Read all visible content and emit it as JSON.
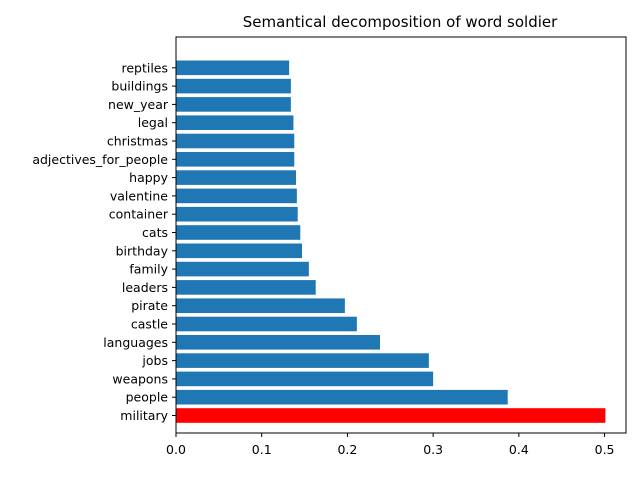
{
  "chart_data": {
    "type": "bar",
    "orientation": "horizontal",
    "title": "Semantical decomposition of word soldier",
    "xlabel": "",
    "ylabel": "",
    "xlim": [
      0,
      0.525
    ],
    "xticks": [
      "0.0",
      "0.1",
      "0.2",
      "0.3",
      "0.4",
      "0.5"
    ],
    "grid": false,
    "highlight_color": "#ff0000",
    "bar_color": "#1f77b4",
    "categories": [
      "military",
      "people",
      "weapons",
      "jobs",
      "languages",
      "castle",
      "pirate",
      "leaders",
      "family",
      "birthday",
      "cats",
      "container",
      "valentine",
      "happy",
      "adjectives_for_people",
      "christmas",
      "legal",
      "new_year",
      "buildings",
      "reptiles"
    ],
    "values": [
      0.501,
      0.387,
      0.3,
      0.295,
      0.238,
      0.211,
      0.197,
      0.163,
      0.155,
      0.147,
      0.145,
      0.142,
      0.141,
      0.14,
      0.138,
      0.138,
      0.137,
      0.134,
      0.134,
      0.132
    ],
    "highlight_index": 0
  }
}
